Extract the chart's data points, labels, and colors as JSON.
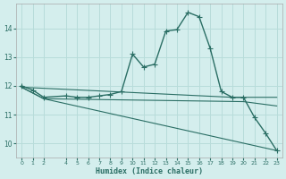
{
  "xlabel": "Humidex (Indice chaleur)",
  "bg_color": "#d4eeed",
  "grid_color": "#b8dcda",
  "line_color": "#2a6e64",
  "xlim": [
    -0.5,
    23.5
  ],
  "ylim": [
    9.5,
    14.85
  ],
  "xticks": [
    0,
    1,
    2,
    4,
    5,
    6,
    7,
    8,
    9,
    10,
    11,
    12,
    13,
    14,
    15,
    16,
    17,
    18,
    19,
    20,
    21,
    22,
    23
  ],
  "yticks": [
    10,
    11,
    12,
    13,
    14
  ],
  "curve_main_x": [
    0,
    1,
    2,
    4,
    5,
    6,
    7,
    8,
    9,
    10,
    11,
    12,
    13,
    14,
    15,
    16,
    17,
    18,
    19,
    20,
    21,
    22,
    23
  ],
  "curve_main_y": [
    12.0,
    11.85,
    11.6,
    11.65,
    11.6,
    11.6,
    11.65,
    11.7,
    11.8,
    13.1,
    12.65,
    12.75,
    13.9,
    13.95,
    14.55,
    14.4,
    13.3,
    11.8,
    11.6,
    11.6,
    10.9,
    10.35,
    9.75
  ],
  "line1_x": [
    0,
    19,
    23
  ],
  "line1_y": [
    11.95,
    11.6,
    11.6
  ],
  "line2_x": [
    0,
    2,
    20,
    23
  ],
  "line2_y": [
    11.95,
    11.55,
    11.45,
    11.3
  ],
  "line3_x": [
    0,
    2,
    23
  ],
  "line3_y": [
    11.95,
    11.55,
    9.75
  ],
  "marker": "+",
  "marker_size": 4,
  "lw_main": 1.0,
  "lw_line": 0.8
}
